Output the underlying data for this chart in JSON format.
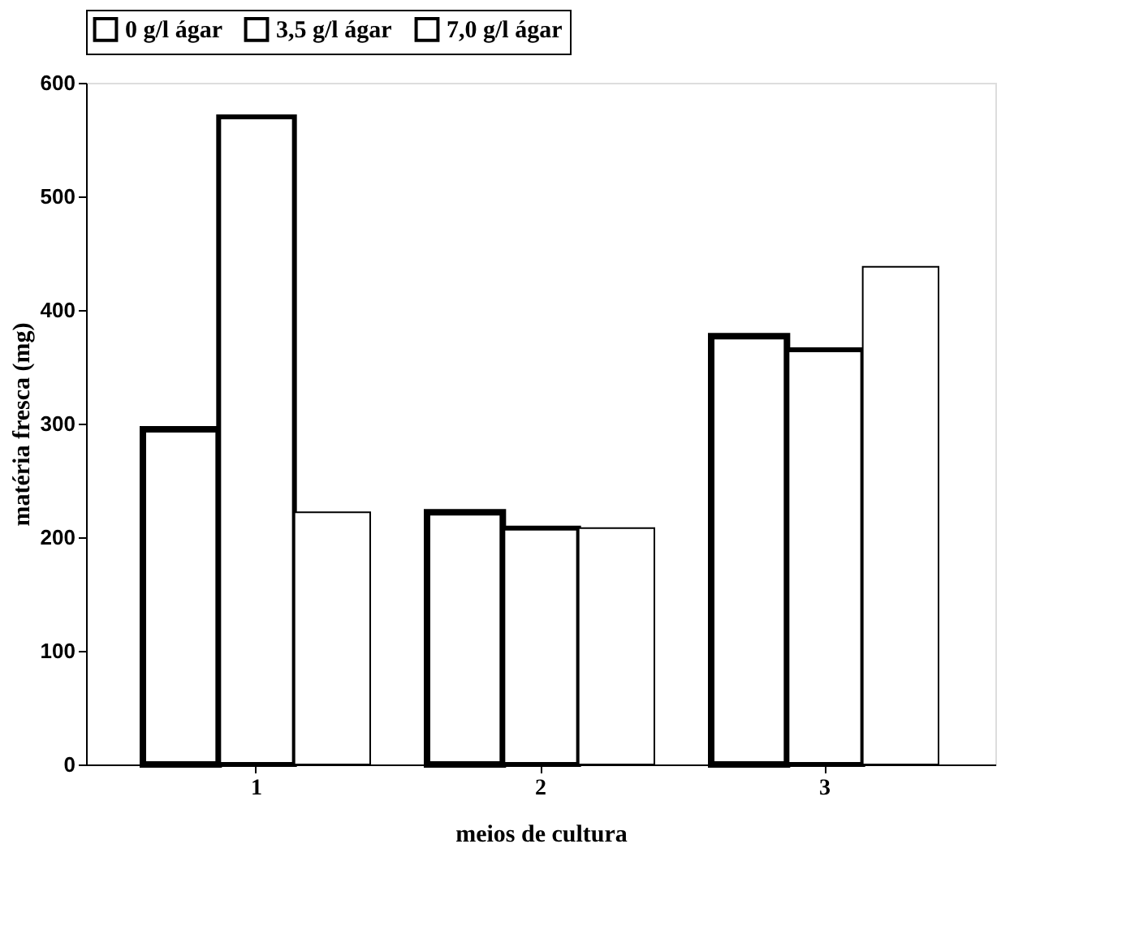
{
  "chart_data": {
    "type": "bar",
    "xlabel": "meios de cultura",
    "ylabel": "matéria fresca (mg)",
    "categories": [
      "1",
      "2",
      "3"
    ],
    "series": [
      {
        "name": "0 g/l ágar",
        "color": "#ffffff",
        "values": [
          295,
          222,
          377
        ]
      },
      {
        "name": "3,5 g/l ágar",
        "color": "#ffffff",
        "values": [
          570,
          208,
          365
        ]
      },
      {
        "name": "7,0 g/l ágar",
        "color": "#ffffff",
        "values": [
          222,
          208,
          438
        ]
      }
    ],
    "ylim": [
      0,
      600
    ],
    "yticks": [
      0,
      100,
      200,
      300,
      400,
      500,
      600
    ],
    "grid": false,
    "legend": "top"
  }
}
